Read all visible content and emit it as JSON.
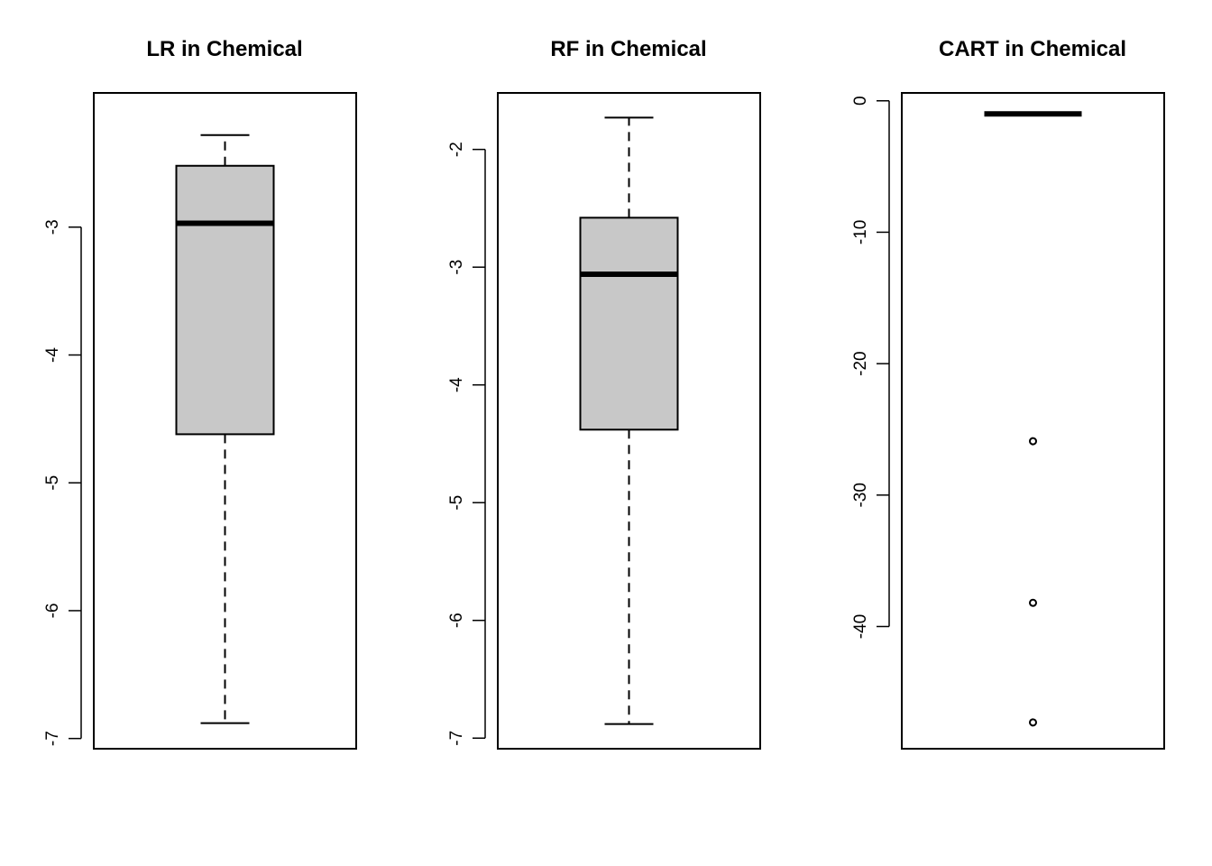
{
  "chart_data": [
    {
      "type": "boxplot",
      "title": "LR in Chemical",
      "ylim": [
        -7.08,
        -1.95
      ],
      "yticks": [
        -7,
        -6,
        -5,
        -4,
        -3
      ],
      "ytick_labels": [
        "-7",
        "-6",
        "-5",
        "-4",
        "-3"
      ],
      "box": {
        "whisker_low": -6.88,
        "q1": -4.62,
        "median": -2.97,
        "q3": -2.52,
        "whisker_high": -2.28
      },
      "outliers": [],
      "fill": "#c8c8c8"
    },
    {
      "type": "boxplot",
      "title": "RF in Chemical",
      "ylim": [
        -7.09,
        -1.52
      ],
      "yticks": [
        -7,
        -6,
        -5,
        -4,
        -3,
        -2
      ],
      "ytick_labels": [
        "-7",
        "-6",
        "-5",
        "-4",
        "-3",
        "-2"
      ],
      "box": {
        "whisker_low": -6.88,
        "q1": -4.38,
        "median": -3.06,
        "q3": -2.58,
        "whisker_high": -1.73
      },
      "outliers": [],
      "fill": "#c8c8c8"
    },
    {
      "type": "boxplot",
      "title": "CART in Chemical",
      "ylim": [
        -49.3,
        0.6
      ],
      "yticks": [
        -40,
        -30,
        -20,
        -10,
        0
      ],
      "ytick_labels": [
        "-40",
        "-30",
        "-20",
        "-10",
        "0"
      ],
      "box": {
        "whisker_low": -1.0,
        "q1": -1.0,
        "median": -1.0,
        "q3": -1.0,
        "whisker_high": -1.0
      },
      "outliers": [
        -25.9,
        -38.2,
        -47.3
      ],
      "fill": "#c8c8c8"
    }
  ]
}
